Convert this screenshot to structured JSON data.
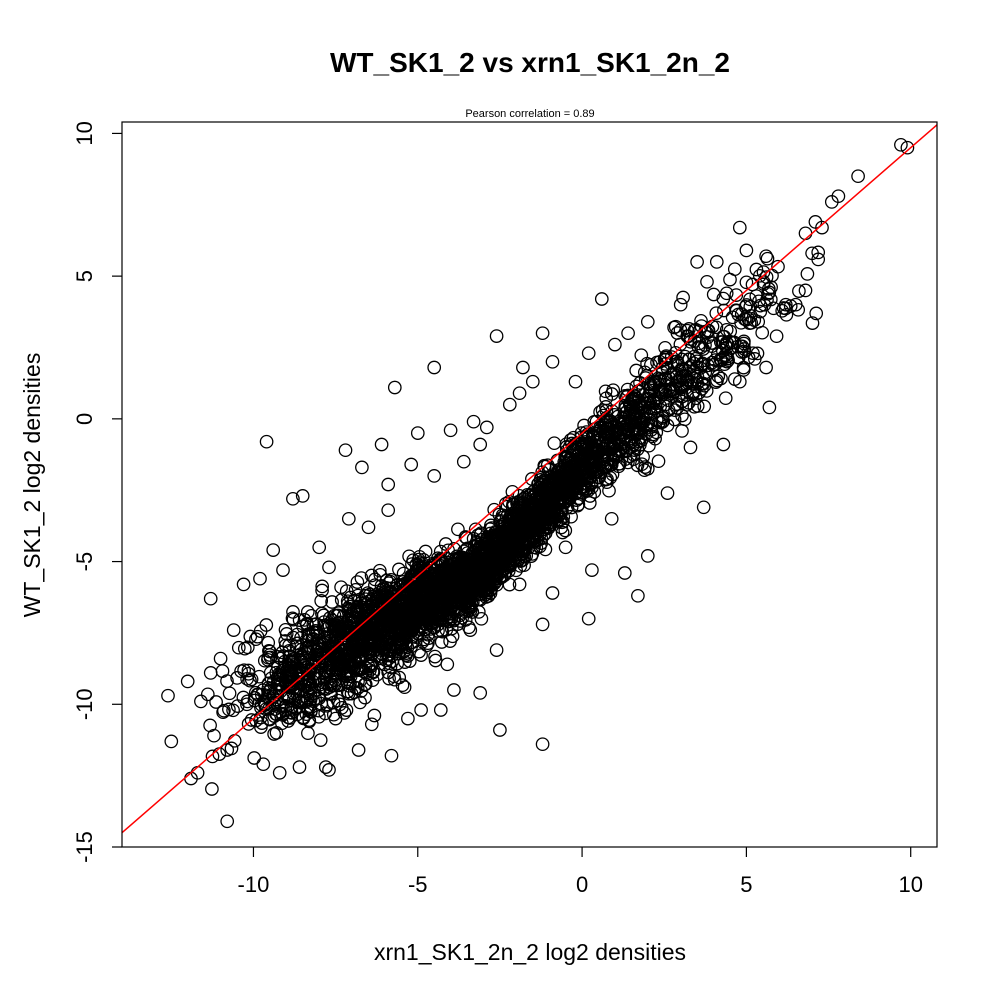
{
  "chart_data": {
    "type": "scatter",
    "title": "WT_SK1_2 vs xrn1_SK1_2n_2",
    "subtitle": "Pearson correlation =  0.89",
    "xlabel": "xrn1_SK1_2n_2 log2 densities",
    "ylabel": "WT_SK1_2 log2 densities",
    "xlim": [
      -14.0,
      10.8
    ],
    "ylim": [
      -15.0,
      10.4
    ],
    "xticks": [
      -10,
      -5,
      0,
      5,
      10
    ],
    "yticks": [
      -15,
      -10,
      -5,
      0,
      5,
      10
    ],
    "xtick_labels": [
      "-10",
      "-5",
      "0",
      "5",
      "10"
    ],
    "ytick_labels": [
      "-15",
      "-10",
      "-5",
      "0",
      "5",
      "10"
    ],
    "grid": false,
    "point_style": "open-circle",
    "point_color": "#000000",
    "fit_line": {
      "color": "#ff0000",
      "intercept": -0.5,
      "slope": 1.0
    },
    "series": [
      {
        "outliers": [
          [
            -12.6,
            -9.7
          ],
          [
            -12.5,
            -11.3
          ],
          [
            -11.9,
            -12.6
          ],
          [
            -11.7,
            -12.4
          ],
          [
            -10.8,
            -14.1
          ],
          [
            -11.3,
            -6.3
          ],
          [
            -11.2,
            -11.1
          ],
          [
            -10.8,
            -11.6
          ],
          [
            -10.3,
            -5.8
          ],
          [
            -9.7,
            -12.1
          ],
          [
            -9.6,
            -0.8
          ],
          [
            -9.2,
            -12.4
          ],
          [
            -8.6,
            -12.2
          ],
          [
            -7.8,
            -12.2
          ],
          [
            -7.7,
            -12.3
          ],
          [
            -6.8,
            -11.6
          ],
          [
            -5.8,
            -11.8
          ],
          [
            -6.1,
            -0.9
          ],
          [
            -7.2,
            -1.1
          ],
          [
            -6.7,
            -1.7
          ],
          [
            -4.5,
            1.8
          ],
          [
            -5.7,
            1.1
          ],
          [
            -5.0,
            -0.5
          ],
          [
            -4.0,
            -0.4
          ],
          [
            -5.9,
            -3.2
          ],
          [
            -2.6,
            2.9
          ],
          [
            -1.8,
            1.8
          ],
          [
            -1.2,
            3.0
          ],
          [
            0.6,
            4.2
          ],
          [
            -3.1,
            -0.9
          ],
          [
            3.5,
            5.5
          ],
          [
            5.3,
            4.3
          ],
          [
            5.7,
            0.4
          ],
          [
            5.6,
            1.8
          ],
          [
            6.2,
            4.0
          ],
          [
            6.5,
            4.0
          ],
          [
            4.3,
            -0.9
          ],
          [
            3.7,
            -3.1
          ],
          [
            1.3,
            -5.4
          ],
          [
            1.7,
            -6.2
          ],
          [
            0.2,
            -7.0
          ],
          [
            -1.2,
            -7.2
          ],
          [
            -2.5,
            -10.9
          ],
          [
            -1.2,
            -11.4
          ],
          [
            -3.1,
            -9.6
          ],
          [
            -4.9,
            -10.2
          ],
          [
            -5.4,
            -9.4
          ],
          [
            -9.4,
            -4.6
          ],
          [
            -8.8,
            -2.8
          ],
          [
            -8.5,
            -2.7
          ],
          [
            9.7,
            9.6
          ],
          [
            9.9,
            9.5
          ],
          [
            8.4,
            8.5
          ],
          [
            7.8,
            7.8
          ],
          [
            7.6,
            7.6
          ],
          [
            7.3,
            6.7
          ],
          [
            7.1,
            6.9
          ],
          [
            6.8,
            6.5
          ],
          [
            5.6,
            5.7
          ],
          [
            5.0,
            5.9
          ],
          [
            4.8,
            6.7
          ],
          [
            4.1,
            5.5
          ],
          [
            3.8,
            4.8
          ],
          [
            3.0,
            4.0
          ],
          [
            2.0,
            3.4
          ],
          [
            1.4,
            3.0
          ],
          [
            0.2,
            2.3
          ],
          [
            -0.9,
            2.0
          ],
          [
            -1.5,
            1.3
          ],
          [
            -2.2,
            0.5
          ],
          [
            -3.3,
            -0.1
          ],
          [
            -5.2,
            -1.6
          ],
          [
            -5.9,
            -2.3
          ],
          [
            -7.1,
            -3.5
          ],
          [
            -8.0,
            -4.5
          ],
          [
            -9.1,
            -5.3
          ],
          [
            -9.8,
            -5.6
          ],
          [
            -10.6,
            -7.4
          ],
          [
            -11.0,
            -8.4
          ],
          [
            -11.6,
            -9.9
          ],
          [
            -12.0,
            -9.2
          ],
          [
            -11.3,
            -8.9
          ],
          [
            -10.2,
            -10.0
          ],
          [
            -9.3,
            -11.0
          ],
          [
            -8.3,
            -10.6
          ],
          [
            -7.5,
            -10.5
          ],
          [
            -6.4,
            -10.7
          ],
          [
            -5.3,
            -10.5
          ],
          [
            -4.3,
            -10.2
          ],
          [
            -3.9,
            -9.5
          ],
          [
            -2.6,
            -8.1
          ],
          [
            -0.9,
            -6.1
          ],
          [
            0.3,
            -5.3
          ],
          [
            2.0,
            -4.8
          ],
          [
            2.6,
            -2.6
          ],
          [
            3.3,
            -1.0
          ],
          [
            4.8,
            1.3
          ],
          [
            5.2,
            2.3
          ],
          [
            6.8,
            4.5
          ],
          [
            7.0,
            5.8
          ],
          [
            1.9,
            -1.8
          ],
          [
            0.9,
            -3.5
          ],
          [
            -0.5,
            -4.5
          ],
          [
            -1.9,
            -5.8
          ],
          [
            -3.4,
            -7.4
          ],
          [
            -4.1,
            -8.6
          ],
          [
            -6.0,
            -8.0
          ],
          [
            -7.0,
            -7.9
          ],
          [
            -8.2,
            -9.2
          ],
          [
            -7.7,
            -5.2
          ],
          [
            -6.5,
            -3.8
          ],
          [
            -4.5,
            -2.0
          ],
          [
            -3.6,
            -1.5
          ],
          [
            -2.9,
            -0.3
          ],
          [
            -1.9,
            0.9
          ],
          [
            -0.2,
            1.3
          ],
          [
            1.0,
            2.6
          ],
          [
            2.8,
            3.2
          ],
          [
            4.4,
            4.4
          ],
          [
            3.2,
            2.9
          ]
        ]
      }
    ]
  }
}
